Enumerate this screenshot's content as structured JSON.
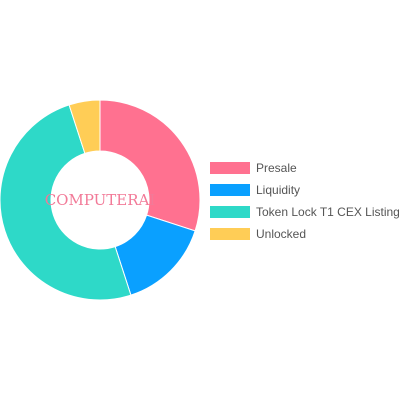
{
  "chart_data": {
    "type": "pie",
    "variant": "doughnut",
    "center_text": "COMPUTERAI",
    "legend_position": "right",
    "categories": [
      "Presale",
      "Liquidity",
      "Token Lock T1 CEX Listing",
      "Unlocked"
    ],
    "values": [
      30,
      15,
      50,
      5
    ],
    "colors": [
      "#ff7190",
      "#0aa0ff",
      "#2ed9c8",
      "#ffcd56"
    ]
  }
}
